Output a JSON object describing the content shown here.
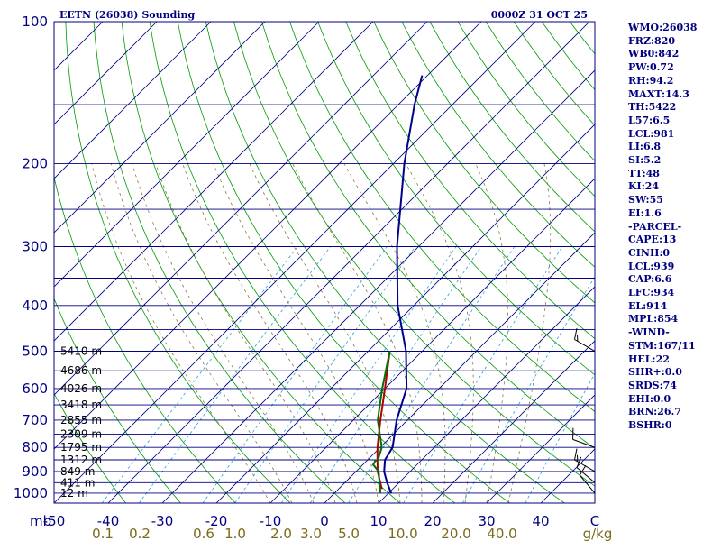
{
  "header": {
    "station": "EETN (26038) Sounding",
    "time": "0000Z 31 OCT 25"
  },
  "stats": [
    "WMO:26038",
    "FRZ:820",
    "WB0:842",
    "PW:0.72",
    "RH:94.2",
    "MAXT:14.3",
    "TH:5422",
    "L57:6.5",
    "LCL:981",
    "LI:6.8",
    "SI:5.2",
    "TT:48",
    "KI:24",
    "SW:55",
    "EI:1.6",
    "-PARCEL-",
    "CAPE:13",
    "CINH:0",
    "LCL:939",
    "CAP:6.6",
    "LFC:934",
    "EL:914",
    "MPL:854",
    "-WIND-",
    "STM:167/11",
    "HEL:22",
    "SHR+:0.0",
    "SRDS:74",
    "EHI:0.0",
    "BRN:26.7",
    "BSHR:0"
  ],
  "chart_data": {
    "type": "line",
    "title": "EETN (26038) Sounding",
    "subtitle": "0000Z 31 OCT 25",
    "xlabel": "C",
    "ylabel": "mb",
    "mixing_label": "g/kg",
    "x_scale": "skew-T temperature (C)",
    "y_scale": "log pressure (mb)",
    "ylim": [
      1000,
      100
    ],
    "pressure_ticks": [
      100,
      200,
      300,
      400,
      500,
      600,
      700,
      800,
      900,
      1000
    ],
    "temperature_ticks": [
      "-50",
      "-40",
      "-30",
      "-20",
      "-10",
      "0",
      "10",
      "20",
      "30",
      "40",
      "C"
    ],
    "mixing_ratio_ticks": [
      "0.1",
      "0.2",
      "0.6",
      "1.0",
      "2.0",
      "3.0",
      "5.0",
      "10.0",
      "20.0",
      "40.0",
      "g/kg"
    ],
    "height_labels": [
      {
        "p": 500,
        "text": "5410 m"
      },
      {
        "p": 550,
        "text": "4686 m"
      },
      {
        "p": 600,
        "text": "4026 m"
      },
      {
        "p": 650,
        "text": "3418 m"
      },
      {
        "p": 700,
        "text": "2855 m"
      },
      {
        "p": 750,
        "text": "2309 m"
      },
      {
        "p": 800,
        "text": "1795 m"
      },
      {
        "p": 850,
        "text": "1312 m"
      },
      {
        "p": 900,
        "text": "849 m"
      },
      {
        "p": 950,
        "text": "411 m"
      },
      {
        "p": 1000,
        "text": "12 m"
      }
    ],
    "series": [
      {
        "color": "#00008b",
        "points": [
          {
            "p": 1000,
            "t": 10.5
          },
          {
            "p": 950,
            "t": 7.8
          },
          {
            "p": 900,
            "t": 5.2
          },
          {
            "p": 850,
            "t": 3.2
          },
          {
            "p": 800,
            "t": 2.3
          },
          {
            "p": 700,
            "t": -2.0
          },
          {
            "p": 600,
            "t": -6.0
          },
          {
            "p": 500,
            "t": -13.0
          },
          {
            "p": 400,
            "t": -23.0
          },
          {
            "p": 300,
            "t": -34.0
          },
          {
            "p": 200,
            "t": -48.0
          },
          {
            "p": 150,
            "t": -57.0
          },
          {
            "p": 130,
            "t": -61.0
          }
        ]
      },
      {
        "color": "#b00000",
        "points": [
          {
            "p": 980,
            "t": 8.0
          },
          {
            "p": 900,
            "t": 4.0
          },
          {
            "p": 850,
            "t": 1.8
          },
          {
            "p": 800,
            "t": -0.5
          },
          {
            "p": 700,
            "t": -5.0
          },
          {
            "p": 600,
            "t": -10.0
          },
          {
            "p": 500,
            "t": -16.0
          }
        ]
      },
      {
        "color": "#007000",
        "points": [
          {
            "p": 1000,
            "t": 8.5
          },
          {
            "p": 950,
            "t": 6.4
          },
          {
            "p": 900,
            "t": 4.2
          },
          {
            "p": 870,
            "t": 1.9
          },
          {
            "p": 855,
            "t": 1.6
          },
          {
            "p": 850,
            "t": 1.9
          },
          {
            "p": 800,
            "t": 0.3
          },
          {
            "p": 700,
            "t": -5.5
          },
          {
            "p": 600,
            "t": -10.5
          },
          {
            "p": 500,
            "t": -16.0
          }
        ]
      }
    ],
    "wind_barbs": [
      {
        "p": 500,
        "dir": 300,
        "speed": 15
      },
      {
        "p": 800,
        "dir": 290,
        "speed": 10
      },
      {
        "p": 900,
        "dir": 300,
        "speed": 15
      },
      {
        "p": 950,
        "dir": 310,
        "speed": 10
      },
      {
        "p": 1000,
        "dir": 320,
        "speed": 10
      }
    ]
  }
}
